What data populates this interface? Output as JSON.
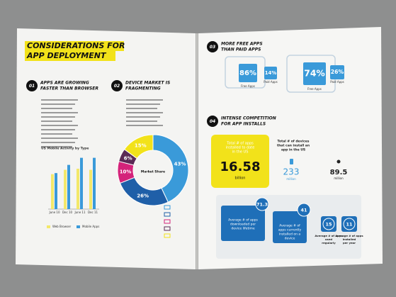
{
  "left_page": {
    "title": [
      "CONSIDERATIONS FOR",
      "APP DEPLOYMENT"
    ],
    "sections": [
      {
        "number": "01",
        "heading": [
          "APPS ARE GROWING",
          "FASTER THAN BROWSER"
        ]
      },
      {
        "number": "02",
        "heading": [
          "DEVICE MARKET IS",
          "FRAGMENTING"
        ]
      }
    ],
    "bar_chart": {
      "title": "US Mobile Activity by Type",
      "categories": [
        "June 10",
        "Dec 10",
        "June 11",
        "Dec 11"
      ],
      "ylim": [
        0,
        100
      ],
      "series": [
        {
          "name": "Web Browser",
          "color": "#f3e86a",
          "values": [
            64,
            72,
            74,
            72
          ]
        },
        {
          "name": "Mobile Apps",
          "color": "#3a9ad9",
          "values": [
            66,
            81,
            94,
            94
          ]
        }
      ]
    },
    "donut": {
      "center_label": "Market Share",
      "segments": [
        {
          "value": 43,
          "label": "43%",
          "color": "#3a9ad9"
        },
        {
          "value": 26,
          "label": "26%",
          "color": "#1f5fa8"
        },
        {
          "value": 10,
          "label": "10%",
          "color": "#d4237a"
        },
        {
          "value": 6,
          "label": "6%",
          "color": "#5a2a55"
        },
        {
          "value": 15,
          "label": "15%",
          "color": "#f2e21a"
        }
      ]
    }
  },
  "right_page": {
    "sections": [
      {
        "number": "03",
        "heading": [
          "MORE FREE APPS",
          "THAN PAID APPS"
        ]
      },
      {
        "number": "04",
        "heading": [
          "INTENSE COMPETITION",
          "FOR APP INSTALLS"
        ]
      }
    ],
    "phone": {
      "free": "86%",
      "paid": "14%",
      "free_label": "Free Apps",
      "paid_label": "Paid Apps"
    },
    "tablet": {
      "free": "74%",
      "paid": "26%",
      "free_label": "Free Apps",
      "paid_label": "Paid Apps"
    },
    "installs": {
      "label": [
        "Total # of apps",
        "installed to date",
        "in the US"
      ],
      "value": "16.58",
      "unit": "billion"
    },
    "devices": {
      "label": [
        "Total # of devices",
        "that can install an",
        "app in the US"
      ],
      "value": "233",
      "unit": "million"
    },
    "other": {
      "value": "89.5",
      "unit": "million"
    },
    "averages": [
      {
        "value": "71.3",
        "label": [
          "Average # of apps",
          "downloaded per",
          "device lifetime"
        ]
      },
      {
        "value": "41",
        "label": [
          "Average # of",
          "apps currently",
          "installed on a",
          "device"
        ]
      },
      {
        "value": "15",
        "label": [
          "Average # of apps",
          "used",
          "regularly"
        ]
      },
      {
        "value": "11",
        "label": [
          "Average # of apps",
          "installed",
          "per year"
        ]
      }
    ]
  }
}
